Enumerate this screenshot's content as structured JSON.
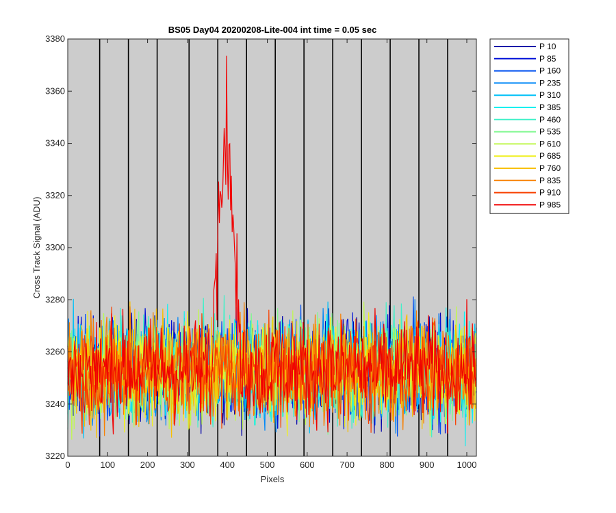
{
  "chart_data": {
    "type": "line",
    "title": "BS05 Day04 20200208-Lite-004 int time = 0.05 sec",
    "xlabel": "Pixels",
    "ylabel": "Cross Track Signal (ADU)",
    "xlim": [
      0,
      1024
    ],
    "ylim": [
      3220,
      3380
    ],
    "x_ticks": [
      0,
      100,
      200,
      300,
      400,
      500,
      600,
      700,
      800,
      900,
      1000
    ],
    "y_ticks": [
      3220,
      3240,
      3260,
      3280,
      3300,
      3320,
      3340,
      3360,
      3380
    ],
    "vertical_markers": [
      80,
      152,
      224,
      304,
      376,
      448,
      520,
      592,
      664,
      736,
      808,
      880,
      952
    ],
    "background": "#cccccc",
    "grid": false,
    "legend_position": "outside-right",
    "baseline_mean": 3253,
    "noise_band": [
      3235,
      3270
    ],
    "series": [
      {
        "name": "P 10",
        "color": "#0000AA"
      },
      {
        "name": "P 85",
        "color": "#0010D8"
      },
      {
        "name": "P 160",
        "color": "#0050F0"
      },
      {
        "name": "P 235",
        "color": "#0088F8"
      },
      {
        "name": "P 310",
        "color": "#00C0F8"
      },
      {
        "name": "P 385",
        "color": "#10F0F0"
      },
      {
        "name": "P 460",
        "color": "#40F0C8"
      },
      {
        "name": "P 535",
        "color": "#80F890"
      },
      {
        "name": "P 610",
        "color": "#C0F850"
      },
      {
        "name": "P 685",
        "color": "#F0F020"
      },
      {
        "name": "P 760",
        "color": "#F8C000"
      },
      {
        "name": "P 835",
        "color": "#F88000"
      },
      {
        "name": "P 910",
        "color": "#F84000"
      },
      {
        "name": "P 985",
        "color": "#F00000",
        "peak": {
          "x_range": [
            365,
            440
          ],
          "center": 395,
          "max": 3362
        }
      }
    ]
  }
}
